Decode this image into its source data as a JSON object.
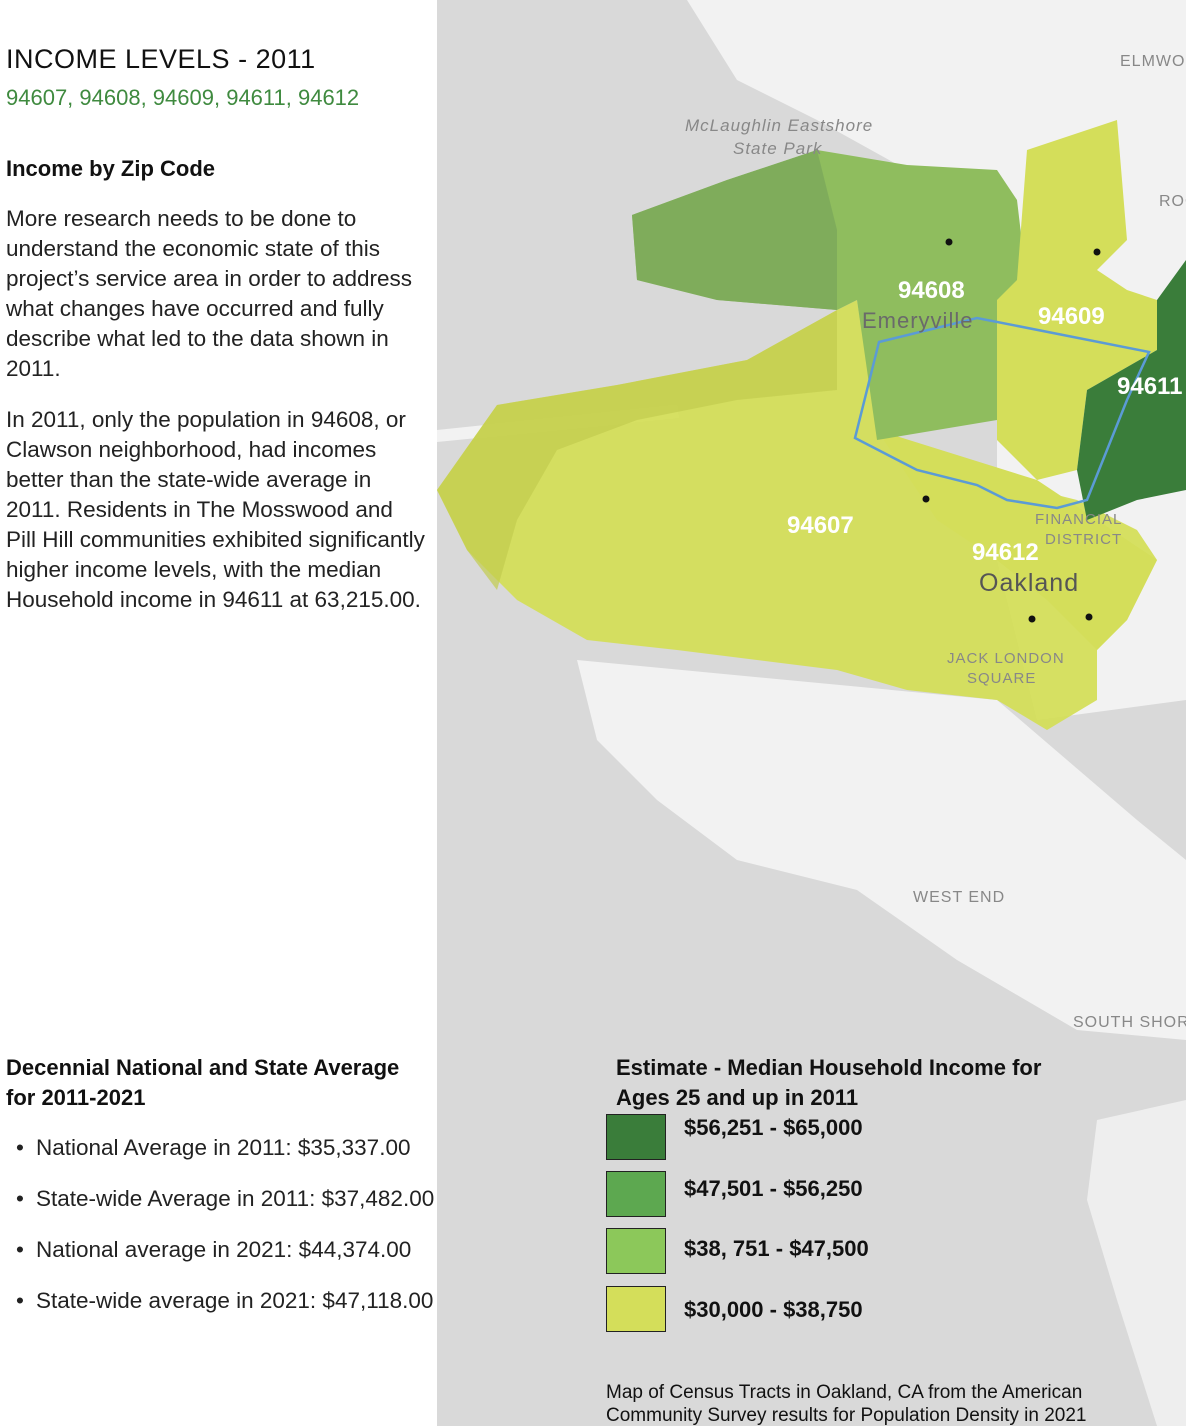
{
  "header": {
    "title": "INCOME LEVELS - 2011",
    "zip_codes": "94607, 94608, 94609, 94611, 94612"
  },
  "section": {
    "heading": "Income by Zip Code",
    "paragraph_1": "More research needs to be done to understand the economic state of this project’s service area in order to address what changes have occurred and fully describe what led to the data shown in 2011.",
    "paragraph_2": "In 2011, only the population in 94608, or Clawson neighborhood, had incomes better than the state-wide average in 2011. Residents in The Mosswood and Pill Hill communities exhibited significantly higher income levels, with the median Household income in 94611 at 63,215.00."
  },
  "averages": {
    "heading": "Decennial National and State Average for 2011-2021",
    "items": [
      "National Average in 2011: $35,337.00",
      "State-wide Average in 2011: $37,482.00",
      "National average in 2021: $44,374.00",
      "State-wide average in 2021: $47,118.00"
    ]
  },
  "map": {
    "zip_labels": {
      "z94608": "94608",
      "z94609": "94609",
      "z94611": "94611",
      "z94607": "94607",
      "z94612": "94612"
    },
    "place_labels": {
      "park": "McLaughlin Eastshore",
      "park2": "State Park",
      "emeryville": "Emeryville",
      "oakland": "Oakland",
      "financial": "FINANCIAL",
      "financial2": "DISTRICT",
      "jack": "JACK LONDON",
      "jack2": "SQUARE",
      "west_end": "WEST END",
      "south_shore": "SOUTH SHOR",
      "elmwood": "ELMWO",
      "rock": "ROC"
    },
    "colors": {
      "tier1": "#3a7d3a",
      "tier2": "#5da850",
      "tier3": "#8cc85a",
      "tier4": "#d4de5a",
      "water": "#d9d9d9",
      "land": "#f2f2f2",
      "outline": "#5b9bd5"
    }
  },
  "legend": {
    "title": "Estimate - Median Household Income for Ages 25 and up in 2011",
    "items": [
      {
        "label": "$56,251 - $65,000",
        "color": "#3a7d3a"
      },
      {
        "label": "$47,501 - $56,250",
        "color": "#5da850"
      },
      {
        "label": "$38, 751 - $47,500",
        "color": "#8cc85a"
      },
      {
        "label": "$30,000 - $38,750",
        "color": "#d4de5a"
      }
    ]
  },
  "caption": "Map of Census Tracts in Oakland, CA from the American Community Survey results for Population Density in 2021"
}
